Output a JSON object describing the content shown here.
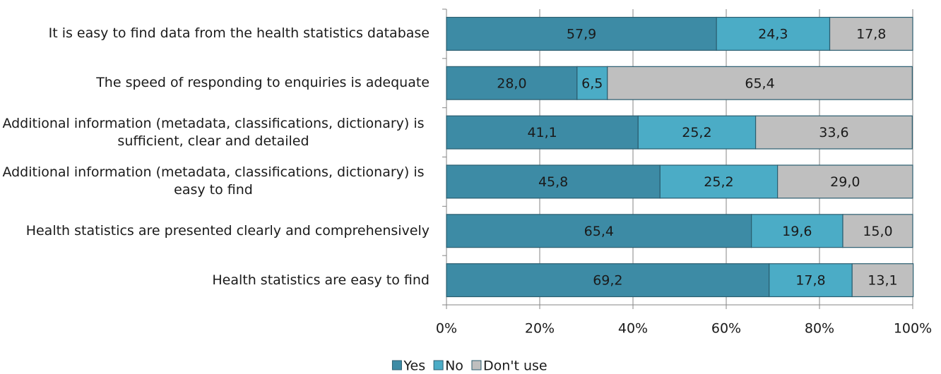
{
  "chart_data": {
    "type": "bar",
    "orientation": "horizontal",
    "stacked": true,
    "categories": [
      "It is easy to find data from the health statistics database",
      "The speed of responding to enquiries is adequate",
      "Additional information (metadata, classifications, dictionary) is sufficient, clear and detailed",
      "Additional information (metadata, classifications, dictionary) is easy to find",
      "Health statistics are presented clearly and comprehensively",
      "Health statistics are easy to find"
    ],
    "series": [
      {
        "name": "Yes",
        "color": "#3d8ba5",
        "values": [
          57.9,
          28.0,
          41.1,
          45.8,
          65.4,
          69.2
        ],
        "value_labels": [
          "57,9",
          "28,0",
          "41,1",
          "45,8",
          "65,4",
          "69,2"
        ]
      },
      {
        "name": "No",
        "color": "#4bacc6",
        "values": [
          24.3,
          6.5,
          25.2,
          25.2,
          19.6,
          17.8
        ],
        "value_labels": [
          "24,3",
          "6,5",
          "25,2",
          "25,2",
          "19,6",
          "17,8"
        ]
      },
      {
        "name": "Don't use",
        "color": "#bfbfbf",
        "values": [
          17.8,
          65.4,
          33.6,
          29.0,
          15.0,
          13.1
        ],
        "value_labels": [
          "17,8",
          "65,4",
          "33,6",
          "29,0",
          "15,0",
          "13,1"
        ]
      }
    ],
    "xlim": [
      0,
      100
    ],
    "xticks": [
      {
        "value": 0,
        "label": "0%"
      },
      {
        "value": 20,
        "label": "20%"
      },
      {
        "value": 40,
        "label": "40%"
      },
      {
        "value": 60,
        "label": "60%"
      },
      {
        "value": 80,
        "label": "80%"
      },
      {
        "value": 100,
        "label": "100%"
      }
    ],
    "grid": true,
    "legend": "bottom"
  }
}
